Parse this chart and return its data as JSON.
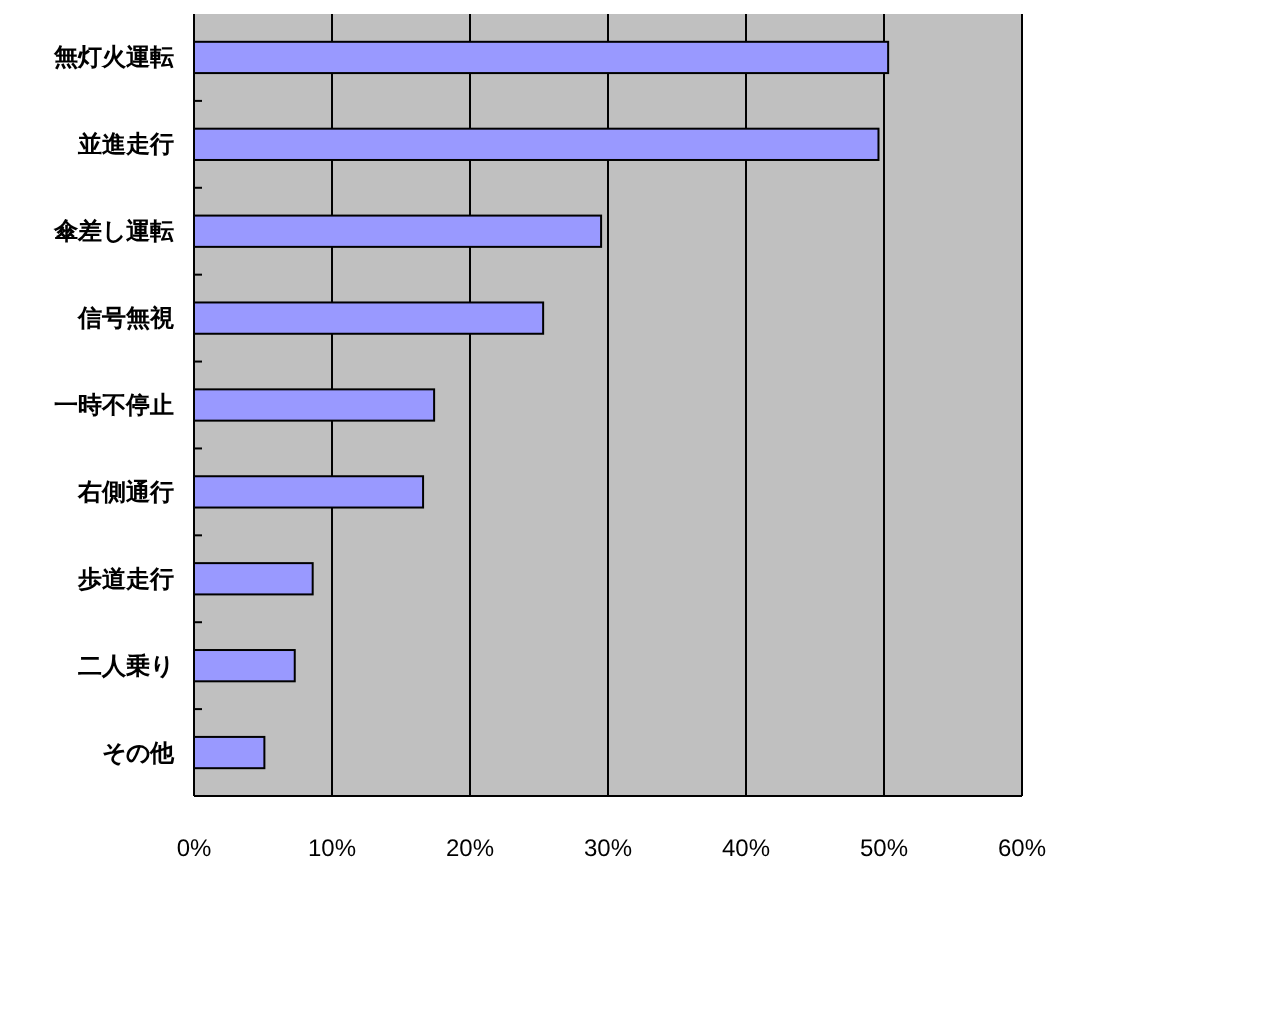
{
  "chart_data": {
    "type": "bar",
    "orientation": "horizontal",
    "categories": [
      "無灯火運転",
      "並進走行",
      "傘差し運転",
      "信号無視",
      "一時不停止",
      "右側通行",
      "歩道走行",
      "二人乗り",
      "その他"
    ],
    "series": [
      {
        "color": "#9999ff",
        "values": [
          50.3,
          49.6,
          29.5,
          25.3,
          17.4,
          16.6,
          8.6,
          7.3,
          5.1
        ]
      }
    ],
    "xlim": [
      0,
      60
    ],
    "xticks": [
      {
        "value": 0,
        "label": "0%"
      },
      {
        "value": 10,
        "label": "10%"
      },
      {
        "value": 20,
        "label": "20%"
      },
      {
        "value": 30,
        "label": "30%"
      },
      {
        "value": 40,
        "label": "40%"
      },
      {
        "value": 50,
        "label": "50%"
      },
      {
        "value": 60,
        "label": "60%"
      }
    ],
    "grid": "x"
  }
}
